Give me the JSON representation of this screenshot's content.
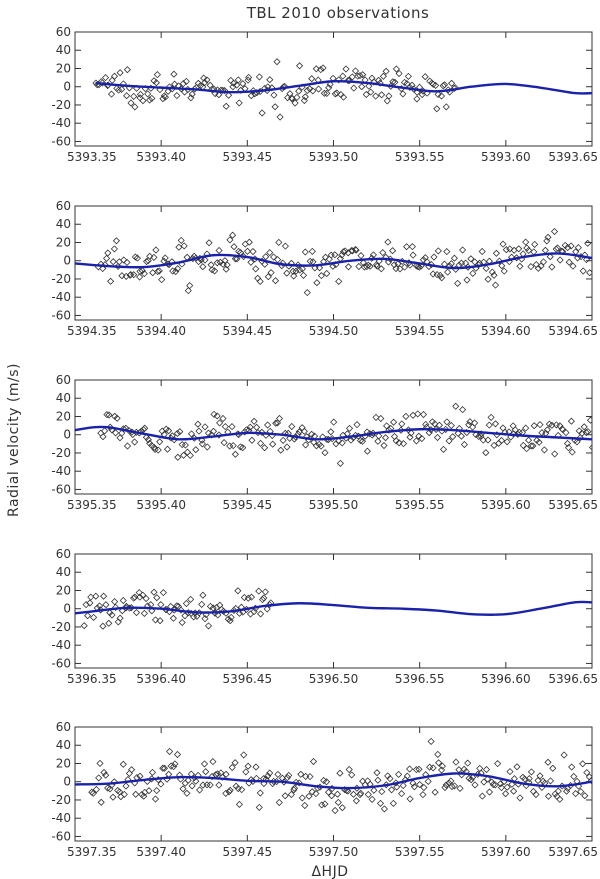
{
  "figure": {
    "title": "TBL 2010 observations",
    "xlabel": "ΔHJD",
    "ylabel": "Radial velocity (m/s)"
  },
  "chart_data": [
    {
      "type": "scatter",
      "name": "panel-1",
      "xlim": [
        5393.35,
        5393.65
      ],
      "ylim": [
        -65,
        60
      ],
      "xticks": [
        5393.35,
        5393.4,
        5393.45,
        5393.5,
        5393.55,
        5393.6,
        5393.65
      ],
      "xtick_labels": [
        "5393.35",
        "5393.40",
        "5393.45",
        "5393.50",
        "5393.55",
        "5393.60",
        "5393.65"
      ],
      "yticks": [
        60,
        40,
        20,
        0,
        -20,
        -40,
        -60
      ],
      "ytick_labels": [
        "60",
        "40",
        "20",
        "0",
        "-20",
        "-40",
        "-60"
      ],
      "data_range": [
        5393.362,
        5393.572
      ],
      "scatter_sigma": 9,
      "model_curve": [
        [
          5393.362,
          4
        ],
        [
          5393.38,
          1
        ],
        [
          5393.4,
          -1
        ],
        [
          5393.42,
          -3
        ],
        [
          5393.44,
          -6
        ],
        [
          5393.46,
          -4
        ],
        [
          5393.48,
          1
        ],
        [
          5393.5,
          6
        ],
        [
          5393.52,
          4
        ],
        [
          5393.54,
          -1
        ],
        [
          5393.56,
          -5
        ],
        [
          5393.58,
          0
        ],
        [
          5393.6,
          3
        ],
        [
          5393.62,
          -1
        ],
        [
          5393.64,
          -7
        ],
        [
          5393.65,
          -7
        ]
      ]
    },
    {
      "type": "scatter",
      "name": "panel-2",
      "xlim": [
        5394.35,
        5394.65
      ],
      "ylim": [
        -65,
        60
      ],
      "xticks": [
        5394.35,
        5394.4,
        5394.45,
        5394.5,
        5394.55,
        5394.6,
        5394.65
      ],
      "xtick_labels": [
        "5394.35",
        "5394.40",
        "5394.45",
        "5394.50",
        "5394.55",
        "5394.60",
        "5394.65"
      ],
      "yticks": [
        60,
        40,
        20,
        0,
        -20,
        -40,
        -60
      ],
      "ytick_labels": [
        "60",
        "40",
        "20",
        "0",
        "-20",
        "-40",
        "-60"
      ],
      "data_range": [
        5394.364,
        5394.65
      ],
      "scatter_sigma": 11,
      "model_curve": [
        [
          5394.35,
          -3
        ],
        [
          5394.37,
          -6
        ],
        [
          5394.39,
          -7
        ],
        [
          5394.41,
          -2
        ],
        [
          5394.43,
          6
        ],
        [
          5394.45,
          4
        ],
        [
          5394.47,
          -4
        ],
        [
          5394.49,
          -5
        ],
        [
          5394.51,
          0
        ],
        [
          5394.53,
          2
        ],
        [
          5394.55,
          -3
        ],
        [
          5394.57,
          -8
        ],
        [
          5394.59,
          -4
        ],
        [
          5394.61,
          4
        ],
        [
          5394.63,
          8
        ],
        [
          5394.65,
          3
        ]
      ]
    },
    {
      "type": "scatter",
      "name": "panel-3",
      "xlim": [
        5395.35,
        5395.65
      ],
      "ylim": [
        -65,
        60
      ],
      "xticks": [
        5395.35,
        5395.4,
        5395.45,
        5395.5,
        5395.55,
        5395.6,
        5395.65
      ],
      "xtick_labels": [
        "5395.35",
        "5395.40",
        "5395.45",
        "5395.50",
        "5395.55",
        "5395.60",
        "5395.65"
      ],
      "yticks": [
        60,
        40,
        20,
        0,
        -20,
        -40,
        -60
      ],
      "ytick_labels": [
        "60",
        "40",
        "20",
        "0",
        "-20",
        "-40",
        "-60"
      ],
      "data_range": [
        5395.365,
        5395.65
      ],
      "scatter_sigma": 10,
      "model_curve": [
        [
          5395.35,
          5
        ],
        [
          5395.36,
          8
        ],
        [
          5395.37,
          8
        ],
        [
          5395.39,
          1
        ],
        [
          5395.41,
          -5
        ],
        [
          5395.43,
          -2
        ],
        [
          5395.45,
          2
        ],
        [
          5395.47,
          0
        ],
        [
          5395.49,
          -5
        ],
        [
          5395.51,
          -2
        ],
        [
          5395.53,
          3
        ],
        [
          5395.55,
          6
        ],
        [
          5395.57,
          5
        ],
        [
          5395.59,
          2
        ],
        [
          5395.61,
          -1
        ],
        [
          5395.63,
          -3
        ],
        [
          5395.65,
          -5
        ]
      ]
    },
    {
      "type": "scatter",
      "name": "panel-4",
      "xlim": [
        5396.35,
        5396.65
      ],
      "ylim": [
        -65,
        60
      ],
      "xticks": [
        5396.35,
        5396.4,
        5396.45,
        5396.5,
        5396.55,
        5396.6,
        5396.65
      ],
      "xtick_labels": [
        "5396.35",
        "5396.40",
        "5396.45",
        "5396.50",
        "5396.55",
        "5396.60",
        "5396.65"
      ],
      "yticks": [
        60,
        40,
        20,
        0,
        -20,
        -40,
        -60
      ],
      "ytick_labels": [
        "60",
        "40",
        "20",
        "0",
        "-20",
        "-40",
        "-60"
      ],
      "data_range": [
        5396.355,
        5396.465
      ],
      "scatter_sigma": 9,
      "model_curve": [
        [
          5396.35,
          -5
        ],
        [
          5396.36,
          -3
        ],
        [
          5396.38,
          1
        ],
        [
          5396.4,
          0
        ],
        [
          5396.42,
          -4
        ],
        [
          5396.44,
          -3
        ],
        [
          5396.46,
          3
        ],
        [
          5396.48,
          6
        ],
        [
          5396.5,
          4
        ],
        [
          5396.52,
          1
        ],
        [
          5396.54,
          0
        ],
        [
          5396.56,
          -2
        ],
        [
          5396.58,
          -6
        ],
        [
          5396.6,
          -6
        ],
        [
          5396.62,
          0
        ],
        [
          5396.64,
          7
        ],
        [
          5396.65,
          7
        ]
      ]
    },
    {
      "type": "scatter",
      "name": "panel-5",
      "xlim": [
        5397.35,
        5397.65
      ],
      "ylim": [
        -65,
        60
      ],
      "xticks": [
        5397.35,
        5397.4,
        5397.45,
        5397.5,
        5397.55,
        5397.6,
        5397.65
      ],
      "xtick_labels": [
        "5397.35",
        "5397.40",
        "5397.45",
        "5397.50",
        "5397.55",
        "5397.60",
        "5397.65"
      ],
      "yticks": [
        60,
        40,
        20,
        0,
        -20,
        -40,
        -60
      ],
      "ytick_labels": [
        "60",
        "40",
        "20",
        "0",
        "-20",
        "-40",
        "-60"
      ],
      "data_range": [
        5397.36,
        5397.65
      ],
      "scatter_sigma": 12,
      "model_curve": [
        [
          5397.35,
          -3
        ],
        [
          5397.37,
          -2
        ],
        [
          5397.39,
          2
        ],
        [
          5397.41,
          5
        ],
        [
          5397.43,
          4
        ],
        [
          5397.45,
          1
        ],
        [
          5397.47,
          0
        ],
        [
          5397.49,
          -5
        ],
        [
          5397.51,
          -7
        ],
        [
          5397.53,
          -4
        ],
        [
          5397.55,
          4
        ],
        [
          5397.57,
          9
        ],
        [
          5397.59,
          6
        ],
        [
          5397.61,
          -2
        ],
        [
          5397.63,
          -5
        ],
        [
          5397.65,
          0
        ]
      ]
    }
  ],
  "colors": {
    "model_line": "#1a22aa",
    "points": "#333333",
    "axes": "#333333"
  }
}
